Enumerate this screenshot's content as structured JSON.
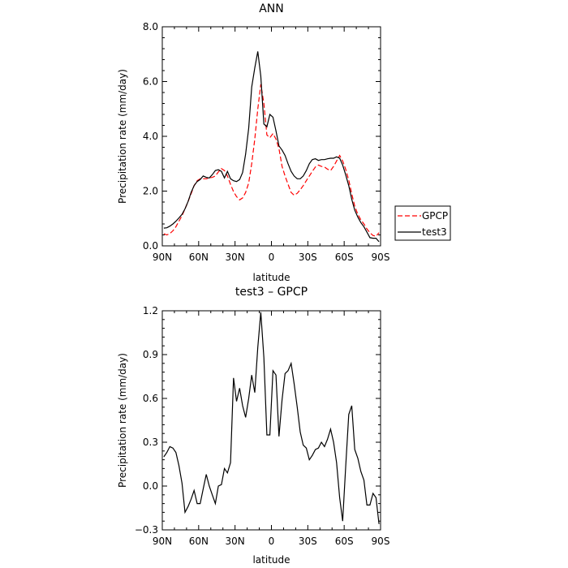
{
  "chart_data": [
    {
      "type": "line",
      "title": "ANN",
      "xlabel": "latitude",
      "ylabel": "Precipitation rate (mm/day)",
      "xlim": [
        90,
        -90
      ],
      "ylim": [
        0,
        8
      ],
      "x_tick_values": [
        90,
        60,
        30,
        0,
        -30,
        -60,
        -90
      ],
      "x_tick_labels": [
        "90N",
        "60N",
        "30N",
        "0",
        "30S",
        "60S",
        "90S"
      ],
      "y_tick_values": [
        0,
        2,
        4,
        6,
        8
      ],
      "y_tick_labels": [
        "0.0",
        "2.0",
        "4.0",
        "6.0",
        "8.0"
      ],
      "legend": "right",
      "x": [
        88.75,
        86.25,
        83.75,
        81.25,
        78.75,
        76.25,
        73.75,
        71.25,
        68.75,
        66.25,
        63.75,
        61.25,
        58.75,
        56.25,
        53.75,
        51.25,
        48.75,
        46.25,
        43.75,
        41.25,
        38.75,
        36.25,
        33.75,
        31.25,
        28.75,
        26.25,
        23.75,
        21.25,
        18.75,
        16.25,
        13.75,
        11.25,
        8.75,
        6.25,
        3.75,
        1.25,
        -1.25,
        -3.75,
        -6.25,
        -8.75,
        -11.25,
        -13.75,
        -16.25,
        -18.75,
        -21.25,
        -23.75,
        -26.25,
        -28.75,
        -31.25,
        -33.75,
        -36.25,
        -38.75,
        -41.25,
        -43.75,
        -46.25,
        -48.75,
        -51.25,
        -53.75,
        -56.25,
        -58.75,
        -61.25,
        -63.75,
        -66.25,
        -68.75,
        -71.25,
        -73.75,
        -76.25,
        -78.75,
        -81.25,
        -83.75,
        -86.25,
        -88.75
      ],
      "series": [
        {
          "name": "GPCP",
          "color": "#ff0000",
          "dash": "dashed",
          "values": [
            0.44,
            0.4,
            0.45,
            0.55,
            0.7,
            0.9,
            1.1,
            1.35,
            1.62,
            1.9,
            2.2,
            2.38,
            2.45,
            2.45,
            2.45,
            2.48,
            2.5,
            2.55,
            2.7,
            2.82,
            2.75,
            2.55,
            2.25,
            1.98,
            1.8,
            1.68,
            1.75,
            1.95,
            2.3,
            3.0,
            3.9,
            5.0,
            5.9,
            5.2,
            4.05,
            3.95,
            4.1,
            3.9,
            3.55,
            2.9,
            2.55,
            2.25,
            1.95,
            1.85,
            1.92,
            2.05,
            2.2,
            2.38,
            2.55,
            2.72,
            2.88,
            2.95,
            2.9,
            2.88,
            2.8,
            2.75,
            2.9,
            3.1,
            3.3,
            3.1,
            2.8,
            2.4,
            1.9,
            1.45,
            1.15,
            0.95,
            0.8,
            0.62,
            0.48,
            0.38,
            0.35,
            0.48
          ]
        },
        {
          "name": "test3",
          "color": "#000000",
          "dash": "solid",
          "values": [
            0.65,
            0.66,
            0.72,
            0.8,
            0.9,
            1.02,
            1.15,
            1.35,
            1.62,
            1.95,
            2.2,
            2.35,
            2.42,
            2.55,
            2.5,
            2.48,
            2.6,
            2.75,
            2.78,
            2.72,
            2.48,
            2.72,
            2.45,
            2.38,
            2.35,
            2.42,
            2.68,
            3.35,
            4.3,
            5.8,
            6.5,
            7.1,
            6.2,
            4.45,
            4.35,
            4.8,
            4.7,
            4.2,
            3.65,
            3.5,
            3.3,
            3.0,
            2.72,
            2.55,
            2.45,
            2.45,
            2.55,
            2.75,
            3.0,
            3.15,
            3.18,
            3.12,
            3.15,
            3.15,
            3.18,
            3.2,
            3.2,
            3.25,
            3.2,
            2.95,
            2.6,
            2.2,
            1.7,
            1.3,
            1.05,
            0.85,
            0.7,
            0.5,
            0.3,
            0.28,
            0.28,
            0.15
          ]
        }
      ]
    },
    {
      "type": "line",
      "title": "test3 – GPCP",
      "xlabel": "latitude",
      "ylabel": "Precipitation rate (mm/day)",
      "xlim": [
        90,
        -90
      ],
      "ylim": [
        -0.3,
        1.2
      ],
      "x_tick_values": [
        90,
        60,
        30,
        0,
        -30,
        -60,
        -90
      ],
      "x_tick_labels": [
        "90N",
        "60N",
        "30N",
        "0",
        "30S",
        "60S",
        "90S"
      ],
      "y_tick_values": [
        -0.3,
        0,
        0.3,
        0.6,
        0.9,
        1.2
      ],
      "y_tick_labels": [
        "−0.3",
        "0.0",
        "0.3",
        "0.6",
        "0.9",
        "1.2"
      ],
      "x": [
        88.75,
        86.25,
        83.75,
        81.25,
        78.75,
        76.25,
        73.75,
        71.25,
        68.75,
        66.25,
        63.75,
        61.25,
        58.75,
        56.25,
        53.75,
        51.25,
        48.75,
        46.25,
        43.75,
        41.25,
        38.75,
        36.25,
        33.75,
        31.25,
        28.75,
        26.25,
        23.75,
        21.25,
        18.75,
        16.25,
        13.75,
        11.25,
        8.75,
        6.25,
        3.75,
        1.25,
        -1.25,
        -3.75,
        -6.25,
        -8.75,
        -11.25,
        -13.75,
        -16.25,
        -18.75,
        -21.25,
        -23.75,
        -26.25,
        -28.75,
        -31.25,
        -33.75,
        -36.25,
        -38.75,
        -41.25,
        -43.75,
        -46.25,
        -48.75,
        -51.25,
        -53.75,
        -56.25,
        -58.75,
        -61.25,
        -63.75,
        -66.25,
        -68.75,
        -71.25,
        -73.75,
        -76.25,
        -78.75,
        -81.25,
        -83.75,
        -86.25,
        -88.75
      ],
      "series": [
        {
          "color": "#000000",
          "dash": "solid",
          "values": [
            0.2,
            0.23,
            0.27,
            0.26,
            0.23,
            0.14,
            0.02,
            -0.18,
            -0.14,
            -0.09,
            -0.03,
            -0.12,
            -0.12,
            -0.02,
            0.08,
            0.0,
            -0.06,
            -0.12,
            0.0,
            0.01,
            0.12,
            0.09,
            0.16,
            0.74,
            0.58,
            0.67,
            0.55,
            0.47,
            0.6,
            0.76,
            0.64,
            0.95,
            1.19,
            0.88,
            0.35,
            0.35,
            0.79,
            0.76,
            0.34,
            0.59,
            0.77,
            0.79,
            0.84,
            0.7,
            0.54,
            0.37,
            0.28,
            0.26,
            0.18,
            0.21,
            0.25,
            0.26,
            0.3,
            0.27,
            0.32,
            0.39,
            0.3,
            0.16,
            -0.08,
            -0.24,
            0.13,
            0.49,
            0.55,
            0.25,
            0.19,
            0.1,
            0.04,
            -0.13,
            -0.13,
            -0.05,
            -0.08,
            -0.26
          ]
        }
      ]
    }
  ]
}
